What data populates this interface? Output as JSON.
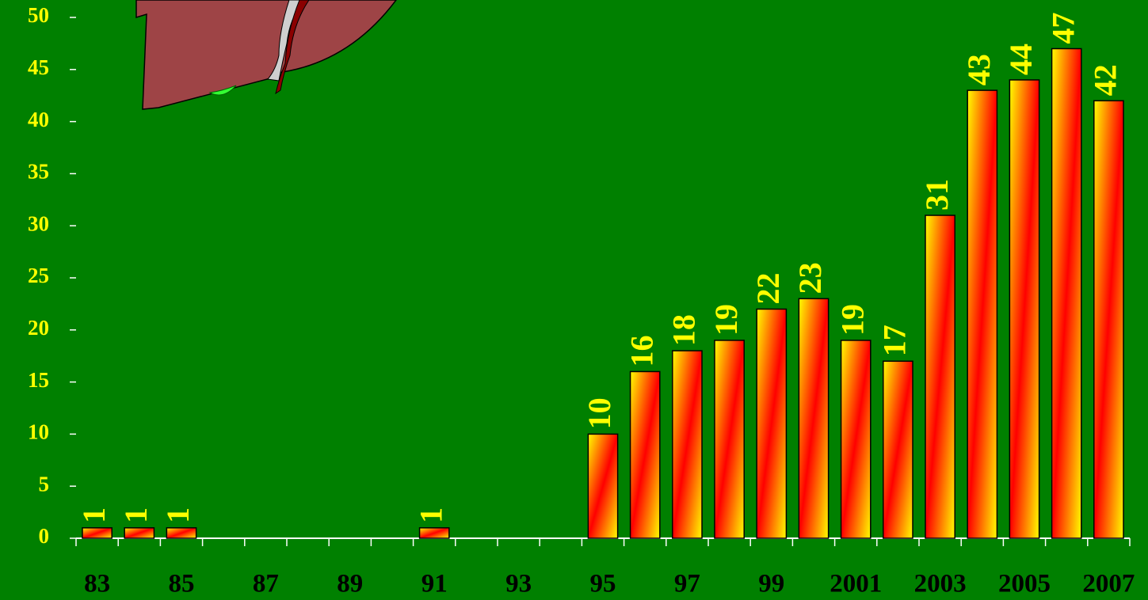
{
  "chart_data": {
    "type": "bar",
    "categories": [
      "83",
      null,
      "85",
      null,
      "87",
      null,
      "89",
      null,
      "91",
      null,
      "93",
      null,
      "95",
      null,
      "97",
      null,
      "99",
      null,
      "2001",
      null,
      "2003",
      null,
      "2005",
      null,
      "2007"
    ],
    "values": [
      1,
      1,
      1,
      null,
      null,
      null,
      null,
      null,
      1,
      null,
      null,
      null,
      10,
      16,
      18,
      19,
      22,
      23,
      19,
      17,
      31,
      43,
      44,
      47,
      42
    ],
    "color": "#ff0000",
    "gradient_color": "#ffff00",
    "ylim": [
      0,
      50
    ],
    "yticks": [
      0,
      5,
      10,
      15,
      20,
      25,
      30,
      35,
      40,
      45,
      50
    ]
  }
}
